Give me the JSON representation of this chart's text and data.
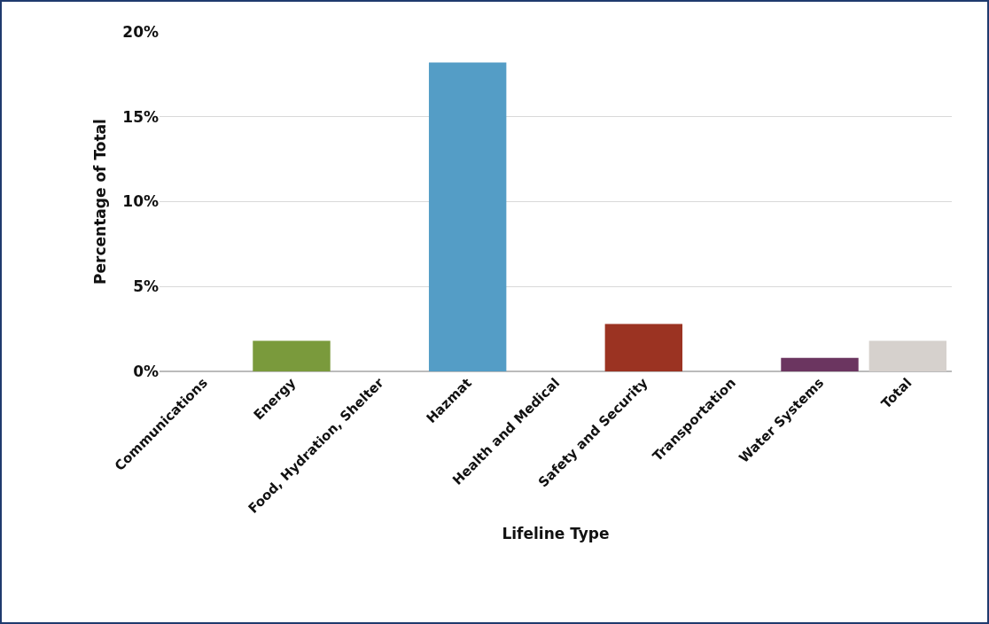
{
  "chart_data": {
    "type": "bar",
    "xlabel": "Lifeline Type",
    "ylabel": "Percentage of Total",
    "categories": [
      "Communications",
      "Energy",
      "Food, Hydration, Shelter",
      "Hazmat",
      "Health and Medical",
      "Safety and Security",
      "Transportation",
      "Water Systems",
      "Total"
    ],
    "values": [
      0,
      1.8,
      0,
      18.2,
      0,
      2.8,
      0,
      0.8,
      1.8
    ],
    "colors": [
      "#7a9a3c",
      "#7a9a3c",
      "#549dc6",
      "#549dc6",
      "#9b3322",
      "#9b3322",
      "#6b3560",
      "#6b3560",
      "#d6d1cd"
    ],
    "ylim": [
      0,
      20
    ],
    "yticks": [
      {
        "value": 0,
        "label": "0%"
      },
      {
        "value": 5,
        "label": "5%"
      },
      {
        "value": 10,
        "label": "10%"
      },
      {
        "value": 15,
        "label": "15%"
      },
      {
        "value": 20,
        "label": "20%"
      }
    ],
    "grid": "y"
  }
}
